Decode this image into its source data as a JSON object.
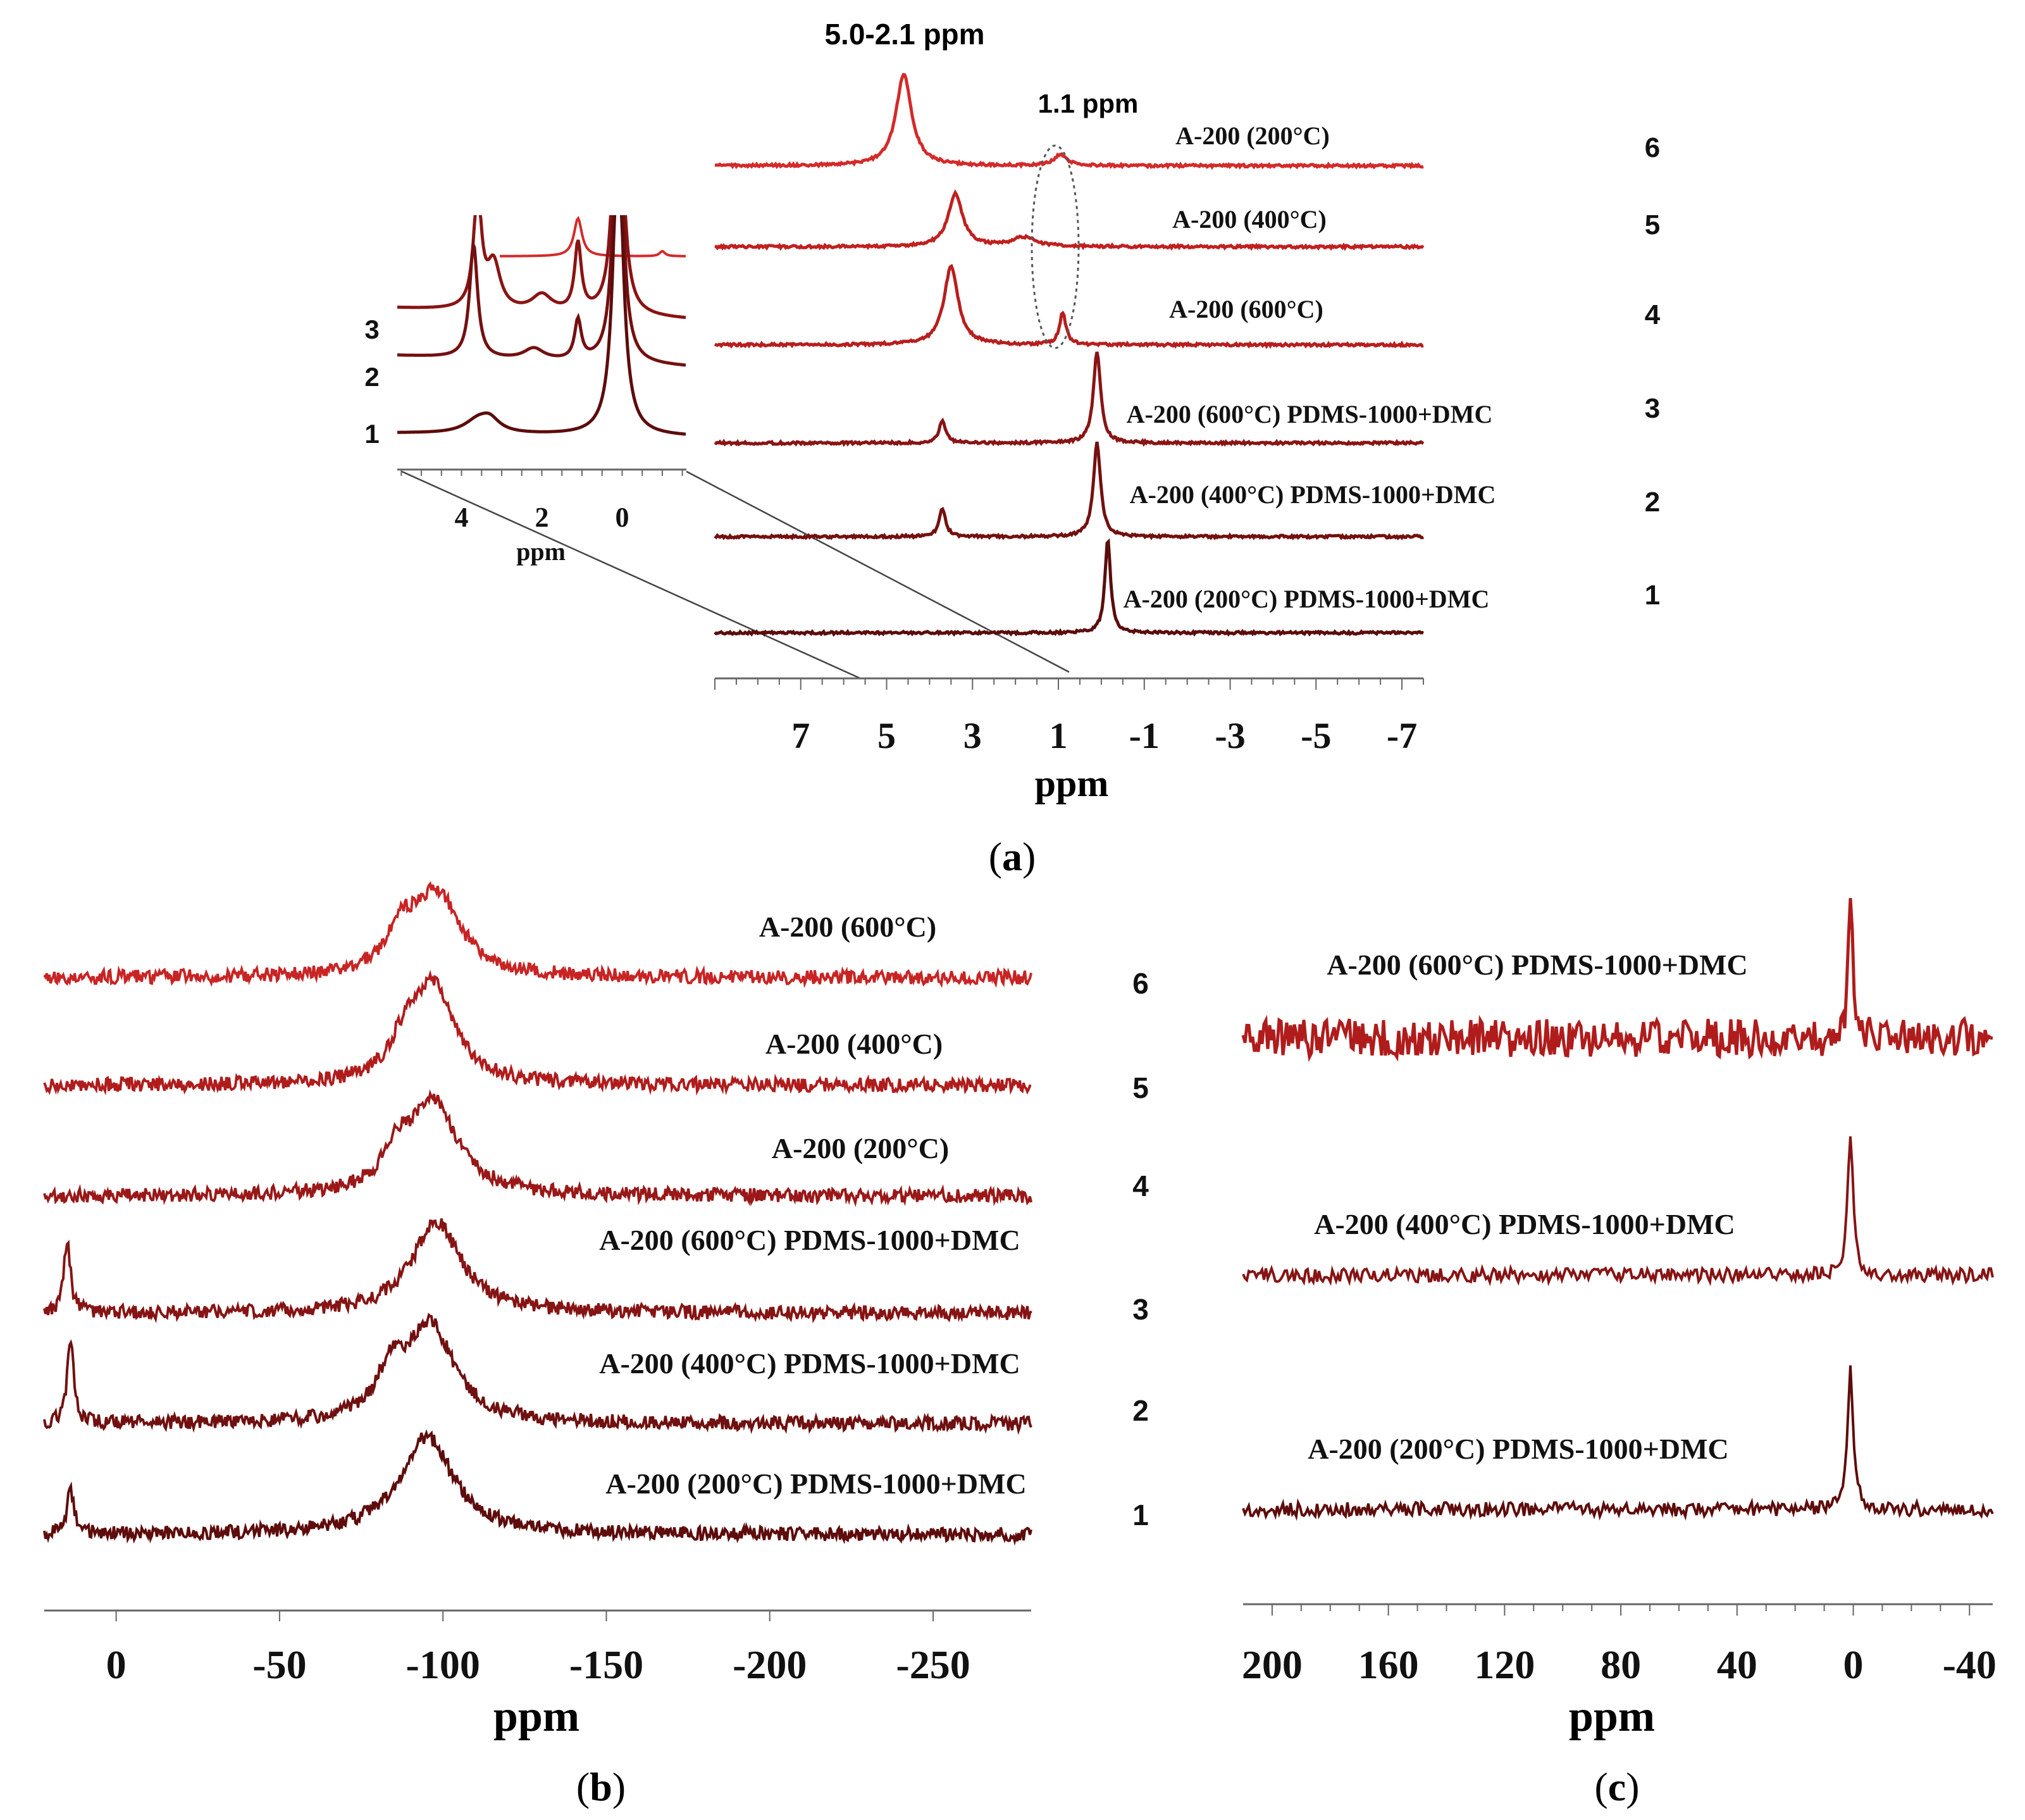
{
  "chart_data": [
    {
      "panel_id": "a",
      "type": "line",
      "panel_label": "a",
      "xlabel": "ppm",
      "xlim": [
        9,
        -7.5
      ],
      "x_ticks": [
        "7",
        "5",
        "3",
        "1",
        "-1",
        "-3",
        "-5",
        "-7"
      ],
      "annotations": [
        "5.0-2.1 ppm",
        "1.1 ppm"
      ],
      "series": [
        {
          "number": "6",
          "name": "A-200 (200°C)",
          "color": "#d42a2a",
          "peaks": [
            {
              "ppm": 4.6,
              "height": 1.0,
              "width": 0.22
            },
            {
              "ppm": 0.95,
              "height": 0.12,
              "width": 0.18
            }
          ]
        },
        {
          "number": "5",
          "name": "A-200 (400°C)",
          "color": "#c0201f",
          "peaks": [
            {
              "ppm": 3.4,
              "height": 0.7,
              "width": 0.2
            },
            {
              "ppm": 1.8,
              "height": 0.12,
              "width": 0.35
            }
          ]
        },
        {
          "number": "4",
          "name": "A-200 (600°C)",
          "color": "#b81e1e",
          "peaks": [
            {
              "ppm": 3.5,
              "height": 0.85,
              "width": 0.2
            },
            {
              "ppm": 0.9,
              "height": 0.35,
              "width": 0.09
            }
          ]
        },
        {
          "number": "3",
          "name": "A-200 (600°C) PDMS-1000+DMC",
          "color": "#8a1414",
          "peaks": [
            {
              "ppm": 3.7,
              "height": 0.25,
              "width": 0.09
            },
            {
              "ppm": 0.1,
              "height": 1.0,
              "width": 0.1
            }
          ]
        },
        {
          "number": "2",
          "name": "A-200 (400°C) PDMS-1000+DMC",
          "color": "#741010",
          "peaks": [
            {
              "ppm": 3.7,
              "height": 0.3,
              "width": 0.09
            },
            {
              "ppm": 0.1,
              "height": 1.0,
              "width": 0.1
            }
          ]
        },
        {
          "number": "1",
          "name": "A-200 (200°C) PDMS-1000+DMC",
          "color": "#5c0c0c",
          "peaks": [
            {
              "ppm": -0.15,
              "height": 1.0,
              "width": 0.08
            }
          ]
        }
      ],
      "inset": {
        "xlabel": "ppm",
        "xlim": [
          5.6,
          -1.6
        ],
        "x_ticks": [
          "4",
          "2",
          "0"
        ],
        "series": [
          {
            "number": "3",
            "name": "A-200 (600°C) PDMS-1000+DMC",
            "color": "#8a1414"
          },
          {
            "number": "2",
            "name": "A-200 (400°C) PDMS-1000+DMC",
            "color": "#741010"
          },
          {
            "number": "1",
            "name": "A-200 (200°C) PDMS-1000+DMC",
            "color": "#5c0c0c"
          }
        ]
      }
    },
    {
      "panel_id": "b",
      "type": "line",
      "panel_label": "b",
      "xlabel": "ppm",
      "xlim": [
        22,
        -280
      ],
      "x_ticks": [
        "0",
        "-50",
        "-100",
        "-150",
        "-200",
        "-250"
      ],
      "series": [
        {
          "number": "6",
          "name": "A-200 (600°C)",
          "color": "#c82424",
          "peaks": [
            {
              "ppm": -98,
              "height": 1.0,
              "width": 9
            },
            {
              "ppm": -87,
              "height": 0.45,
              "width": 5
            }
          ]
        },
        {
          "number": "5",
          "name": "A-200 (400°C)",
          "color": "#b01c1c",
          "peaks": [
            {
              "ppm": -97,
              "height": 1.0,
              "width": 8
            },
            {
              "ppm": -88,
              "height": 0.3,
              "width": 5
            }
          ]
        },
        {
          "number": "4",
          "name": "A-200 (200°C)",
          "color": "#9a1818",
          "peaks": [
            {
              "ppm": -97,
              "height": 1.0,
              "width": 9
            },
            {
              "ppm": -86,
              "height": 0.35,
              "width": 5
            }
          ]
        },
        {
          "number": "3",
          "name": "A-200 (600°C) PDMS-1000+DMC",
          "color": "#861414",
          "peaks": [
            {
              "ppm": 15,
              "height": 0.8,
              "width": 1.2
            },
            {
              "ppm": -98,
              "height": 1.0,
              "width": 9
            }
          ]
        },
        {
          "number": "2",
          "name": "A-200 (400°C) PDMS-1000+DMC",
          "color": "#701010",
          "peaks": [
            {
              "ppm": 14,
              "height": 0.85,
              "width": 1.2
            },
            {
              "ppm": -96,
              "height": 1.0,
              "width": 9
            },
            {
              "ppm": -84,
              "height": 0.4,
              "width": 5
            }
          ]
        },
        {
          "number": "1",
          "name": "A-200 (200°C) PDMS-1000+DMC",
          "color": "#5e0c0c",
          "peaks": [
            {
              "ppm": 14,
              "height": 0.45,
              "width": 1.3
            },
            {
              "ppm": -95,
              "height": 1.0,
              "width": 10
            }
          ]
        }
      ]
    },
    {
      "panel_id": "c",
      "type": "line",
      "panel_label": "c",
      "xlabel": "ppm",
      "xlim": [
        210,
        -48
      ],
      "x_ticks": [
        "200",
        "160",
        "120",
        "80",
        "40",
        "0",
        "-40"
      ],
      "series": [
        {
          "name": "A-200 (600°C) PDMS-1000+DMC",
          "color": "#b01c1c",
          "peaks": [
            {
              "ppm": 1,
              "height": 1.0,
              "width": 0.8
            }
          ]
        },
        {
          "name": "A-200 (400°C) PDMS-1000+DMC",
          "color": "#861414",
          "peaks": [
            {
              "ppm": 1,
              "height": 1.0,
              "width": 1.2
            }
          ]
        },
        {
          "name": "A-200 (200°C) PDMS-1000+DMC",
          "color": "#5e0c0c",
          "peaks": [
            {
              "ppm": 1,
              "height": 1.0,
              "width": 1.2
            }
          ]
        }
      ]
    }
  ]
}
